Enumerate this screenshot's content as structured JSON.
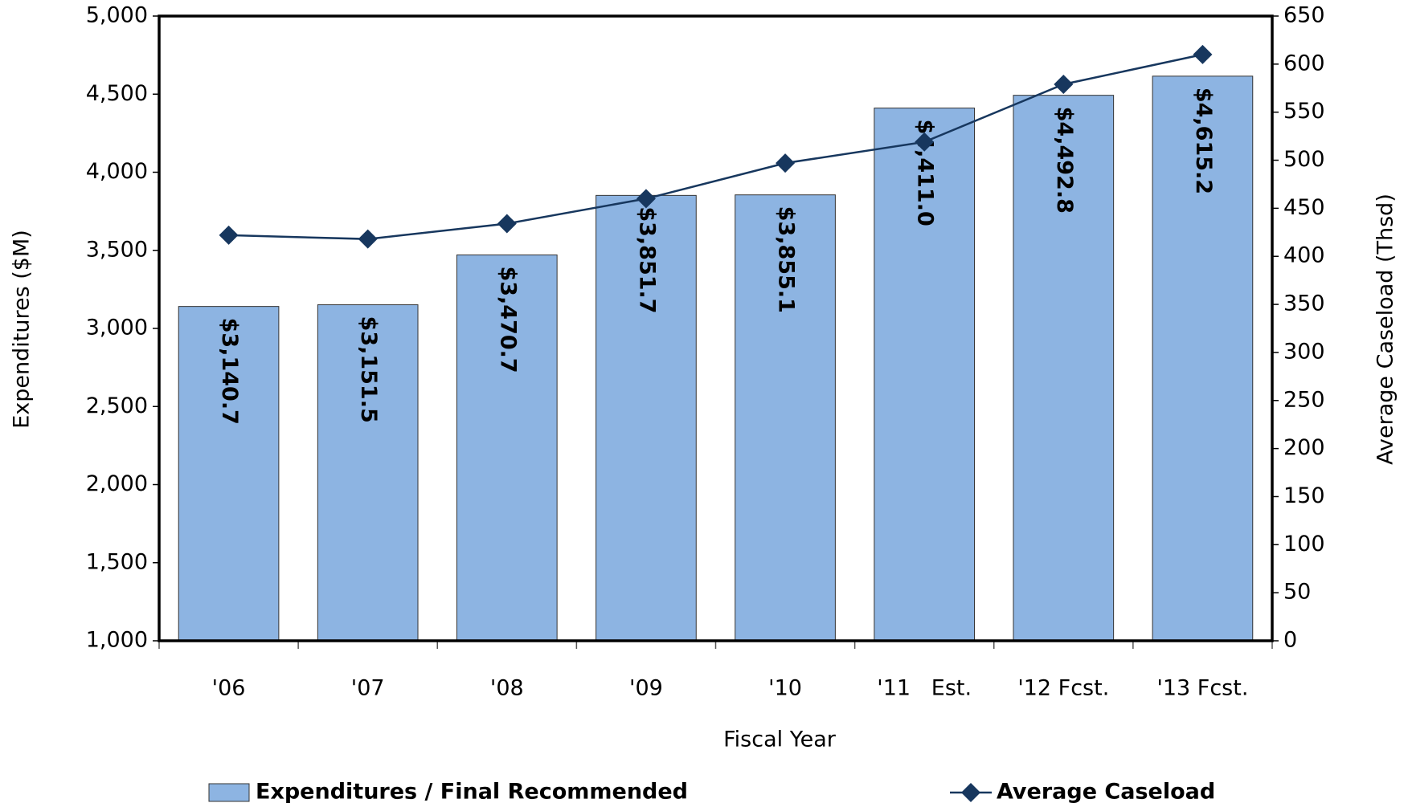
{
  "chart_data": {
    "type": "bar",
    "x_label": "Fiscal Year",
    "y_label": "Expenditures ($M)",
    "y2_label": "Average Caseload (Thsd)",
    "categories": [
      "'06",
      "'07",
      "'08",
      "'09",
      "'10",
      "'11   Est.",
      "'12 Fcst.",
      "'13 Fcst."
    ],
    "series": [
      {
        "name": "Expenditures / Final Recommended",
        "type": "bar",
        "color": "#8db4e2",
        "values": [
          3140.7,
          3151.5,
          3470.7,
          3851.7,
          3855.1,
          4411.0,
          4492.8,
          4615.2
        ],
        "value_labels": [
          "$3,140.7",
          "$3,151.5",
          "$3,470.7",
          "$3,851.7",
          "$3,855.1",
          "$4,411.0",
          "$4,492.8",
          "$4,615.2"
        ]
      },
      {
        "name": "Average Caseload",
        "type": "line",
        "axis": "y2",
        "color": "#17375e",
        "values": [
          422,
          418,
          434,
          460,
          497,
          519,
          579,
          610
        ]
      }
    ],
    "ylim": [
      1000,
      5000
    ],
    "yticks": [
      {
        "value": 1000,
        "label": "1,000"
      },
      {
        "value": 1500,
        "label": "1,500"
      },
      {
        "value": 2000,
        "label": "2,000"
      },
      {
        "value": 2500,
        "label": "2,500"
      },
      {
        "value": 3000,
        "label": "3,000"
      },
      {
        "value": 3500,
        "label": "3,500"
      },
      {
        "value": 4000,
        "label": "4,000"
      },
      {
        "value": 4500,
        "label": "4,500"
      },
      {
        "value": 5000,
        "label": "5,000"
      }
    ],
    "y2lim": [
      0,
      650
    ],
    "y2ticks": [
      0,
      50,
      100,
      150,
      200,
      250,
      300,
      350,
      400,
      450,
      500,
      550,
      600,
      650
    ],
    "grid": false
  }
}
